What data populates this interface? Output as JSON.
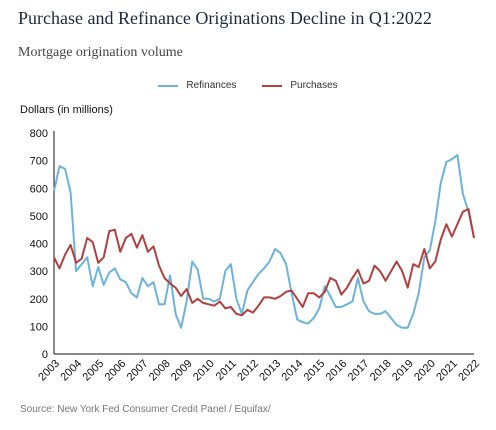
{
  "header": {
    "title": "Purchase and Refinance Originations Decline in Q1:2022",
    "subtitle": "Mortgage origination volume"
  },
  "footer": {
    "source": "Source: New York Fed Consumer Credit Panel / Equifax/"
  },
  "colors": {
    "refinances": "#6cb3dc",
    "purchases": "#b1403f",
    "axis": "#111111"
  },
  "chart_data": {
    "type": "line",
    "ylabel": "Dollars (in millions)",
    "ylim": [
      0,
      800
    ],
    "yticks": [
      0,
      100,
      200,
      300,
      400,
      500,
      600,
      700,
      800
    ],
    "xticks": [
      "2003",
      "2004",
      "2005",
      "2006",
      "2007",
      "2008",
      "2009",
      "2010",
      "2011",
      "2012",
      "2013",
      "2014",
      "2015",
      "2016",
      "2017",
      "2018",
      "2019",
      "2020",
      "2021",
      "2022"
    ],
    "legend": "top-center",
    "grid": false,
    "x": [
      "2003Q1",
      "2003Q2",
      "2003Q3",
      "2003Q4",
      "2004Q1",
      "2004Q2",
      "2004Q3",
      "2004Q4",
      "2005Q1",
      "2005Q2",
      "2005Q3",
      "2005Q4",
      "2006Q1",
      "2006Q2",
      "2006Q3",
      "2006Q4",
      "2007Q1",
      "2007Q2",
      "2007Q3",
      "2007Q4",
      "2008Q1",
      "2008Q2",
      "2008Q3",
      "2008Q4",
      "2009Q1",
      "2009Q2",
      "2009Q3",
      "2009Q4",
      "2010Q1",
      "2010Q2",
      "2010Q3",
      "2010Q4",
      "2011Q1",
      "2011Q2",
      "2011Q3",
      "2011Q4",
      "2012Q1",
      "2012Q2",
      "2012Q3",
      "2012Q4",
      "2013Q1",
      "2013Q2",
      "2013Q3",
      "2013Q4",
      "2014Q1",
      "2014Q2",
      "2014Q3",
      "2014Q4",
      "2015Q1",
      "2015Q2",
      "2015Q3",
      "2015Q4",
      "2016Q1",
      "2016Q2",
      "2016Q3",
      "2016Q4",
      "2017Q1",
      "2017Q2",
      "2017Q3",
      "2017Q4",
      "2018Q1",
      "2018Q2",
      "2018Q3",
      "2018Q4",
      "2019Q1",
      "2019Q2",
      "2019Q3",
      "2019Q4",
      "2020Q1",
      "2020Q2",
      "2020Q3",
      "2020Q4",
      "2021Q1",
      "2021Q2",
      "2021Q3",
      "2021Q4",
      "2022Q1"
    ],
    "series": [
      {
        "name": "Refinances",
        "values": [
          590,
          680,
          670,
          585,
          300,
          325,
          350,
          245,
          315,
          250,
          295,
          310,
          270,
          260,
          220,
          205,
          275,
          245,
          260,
          180,
          180,
          285,
          145,
          95,
          190,
          335,
          305,
          200,
          200,
          190,
          200,
          300,
          325,
          200,
          145,
          230,
          260,
          290,
          310,
          335,
          380,
          365,
          325,
          220,
          125,
          115,
          110,
          130,
          165,
          245,
          210,
          170,
          170,
          180,
          190,
          275,
          190,
          155,
          145,
          145,
          155,
          130,
          105,
          95,
          95,
          145,
          220,
          350,
          375,
          480,
          620,
          695,
          705,
          720,
          580,
          515,
          420
        ]
      },
      {
        "name": "Purchases",
        "values": [
          350,
          310,
          360,
          395,
          330,
          345,
          420,
          405,
          330,
          350,
          445,
          450,
          370,
          420,
          435,
          385,
          430,
          370,
          390,
          320,
          275,
          255,
          240,
          210,
          235,
          185,
          200,
          185,
          180,
          175,
          190,
          165,
          170,
          145,
          140,
          160,
          150,
          175,
          205,
          205,
          200,
          210,
          225,
          230,
          200,
          170,
          220,
          220,
          205,
          225,
          275,
          265,
          215,
          240,
          275,
          305,
          255,
          265,
          320,
          300,
          265,
          300,
          335,
          300,
          240,
          325,
          315,
          380,
          310,
          335,
          415,
          470,
          425,
          470,
          515,
          525,
          420
        ]
      }
    ]
  }
}
